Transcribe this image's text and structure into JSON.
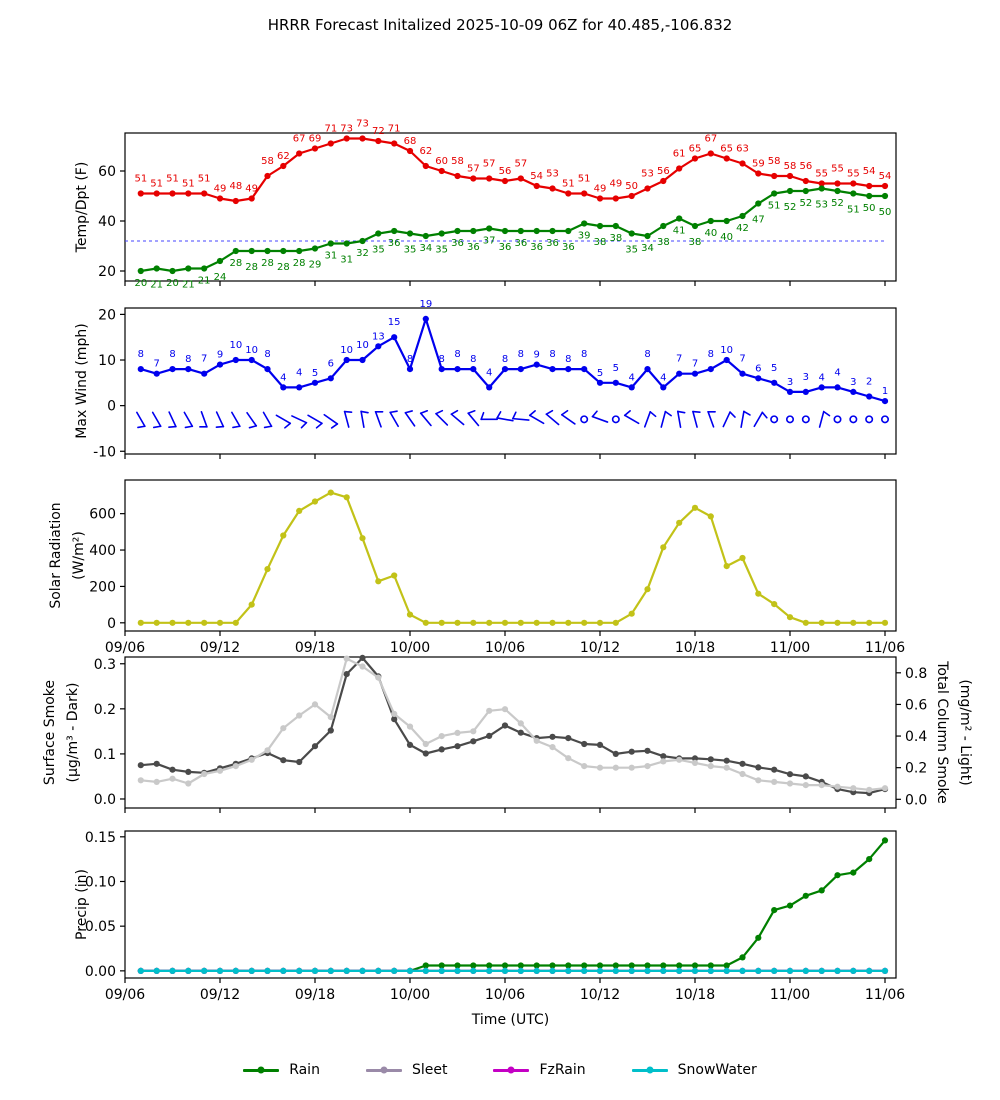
{
  "title": "HRRR Forecast Initalized 2025-10-09 06Z for 40.485,-106.832",
  "x_axis": {
    "label": "Time (UTC)",
    "tick_labels": [
      "09/06",
      "09/12",
      "09/18",
      "10/00",
      "10/06",
      "10/12",
      "10/18",
      "11/00",
      "11/06"
    ],
    "n_points": 48,
    "note": "hourly forecast points beginning one hour after 09/06"
  },
  "colors": {
    "temperature": "#e60000",
    "dewpoint": "#008000",
    "freezing_line": "#4444ff",
    "wind": "#0000ee",
    "solar": "#c2c218",
    "smoke_dark": "#4a4a4a",
    "smoke_light": "#c9c9c9",
    "rain": "#008000",
    "sleet": "#9a8aa8",
    "fzrain": "#c400c4",
    "snowwater": "#00bfca",
    "axis": "#000000"
  },
  "chart_data": [
    {
      "id": "temp",
      "type": "line",
      "ylabel": [
        "Temp/Dpt (F)"
      ],
      "ylim": [
        16.0,
        75.2
      ],
      "yticks": [
        [
          20,
          "20"
        ],
        [
          40,
          "40"
        ],
        [
          60,
          "60"
        ]
      ],
      "grid": false,
      "freezing_line_value": 32,
      "series": [
        {
          "name": "Temperature (F)",
          "color_key": "temperature",
          "point_labels": true,
          "values": [
            51,
            51,
            51,
            51,
            51,
            49,
            48,
            49,
            58,
            62,
            67,
            69,
            71,
            73,
            73,
            72,
            71,
            68,
            62,
            60,
            58,
            57,
            57,
            56,
            57,
            54,
            53,
            51,
            51,
            49,
            49,
            50,
            53,
            56,
            61,
            65,
            67,
            65,
            63,
            59,
            58,
            58,
            56,
            55,
            55,
            55,
            54,
            54
          ],
          "label_side": "above"
        },
        {
          "name": "Dewpoint (F)",
          "color_key": "dewpoint",
          "point_labels": true,
          "values": [
            20,
            21,
            20,
            21,
            21,
            24,
            28,
            28,
            28,
            28,
            28,
            29,
            31,
            31,
            32,
            35,
            36,
            35,
            34,
            35,
            36,
            36,
            37,
            36,
            36,
            36,
            36,
            36,
            39,
            38,
            38,
            35,
            34,
            38,
            41,
            38,
            40,
            40,
            42,
            47,
            51,
            52,
            52,
            53,
            52,
            51,
            50,
            50
          ],
          "label_side": "below"
        }
      ]
    },
    {
      "id": "wind",
      "type": "line",
      "ylabel": [
        "Max Wind (mph)"
      ],
      "ylim": [
        -10.6,
        21.4
      ],
      "yticks": [
        [
          -10,
          "-10"
        ],
        [
          0,
          "0"
        ],
        [
          10,
          "10"
        ],
        [
          20,
          "20"
        ]
      ],
      "grid": false,
      "series": [
        {
          "name": "Max Wind (mph)",
          "color_key": "wind",
          "point_labels": true,
          "values": [
            8,
            7,
            8,
            8,
            7,
            9,
            10,
            10,
            8,
            4,
            4,
            5,
            6,
            10,
            10,
            13,
            15,
            8,
            19,
            8,
            8,
            8,
            4,
            8,
            8,
            9,
            8,
            8,
            8,
            5,
            5,
            4,
            8,
            4,
            7,
            7,
            8,
            10,
            7,
            6,
            5,
            3,
            3,
            4,
            4,
            3,
            2,
            1
          ],
          "label_side": "above"
        }
      ],
      "barbs_y_value": -3,
      "barb_angles_deg": [
        150,
        150,
        155,
        150,
        160,
        155,
        150,
        145,
        150,
        120,
        115,
        120,
        125,
        345,
        350,
        340,
        330,
        325,
        320,
        315,
        310,
        320,
        270,
        280,
        275,
        300,
        310,
        305,
        null,
        290,
        null,
        300,
        20,
        15,
        350,
        345,
        340,
        25,
        10,
        30,
        null,
        null,
        null,
        15,
        null,
        null,
        null,
        null
      ],
      "barb_note": "null = calm circle"
    },
    {
      "id": "solar",
      "type": "line",
      "ylabel": [
        "Solar Radiation",
        "(W/m²)"
      ],
      "ylim": [
        -45,
        785
      ],
      "yticks": [
        [
          0,
          "0"
        ],
        [
          200,
          "200"
        ],
        [
          400,
          "400"
        ],
        [
          600,
          "600"
        ]
      ],
      "x_tick_labels_shown": true,
      "grid": false,
      "series": [
        {
          "name": "Solar Radiation (W/m2)",
          "color_key": "solar",
          "point_labels": false,
          "values": [
            0,
            0,
            0,
            0,
            0,
            0,
            0,
            100,
            295,
            480,
            615,
            667,
            716,
            690,
            465,
            228,
            260,
            45,
            0,
            0,
            0,
            0,
            0,
            0,
            0,
            0,
            0,
            0,
            0,
            0,
            0,
            50,
            185,
            415,
            550,
            632,
            585,
            312,
            356,
            160,
            103,
            31,
            0,
            0,
            0,
            0,
            0,
            0
          ]
        }
      ]
    },
    {
      "id": "smoke",
      "type": "line",
      "ylabel": [
        "Surface Smoke",
        "(μg/m³ - Dark)"
      ],
      "ylabel_right": [
        "Total Column Smoke",
        "(mg/m² - Light)"
      ],
      "ylim": [
        -0.02,
        0.315
      ],
      "yticks": [
        [
          0,
          "0.0"
        ],
        [
          0.1,
          "0.1"
        ],
        [
          0.2,
          "0.2"
        ],
        [
          0.3,
          "0.3"
        ]
      ],
      "ylim_right": [
        -0.055,
        0.9
      ],
      "yticks_right": [
        [
          0,
          "0.0"
        ],
        [
          0.2,
          "0.2"
        ],
        [
          0.4,
          "0.4"
        ],
        [
          0.6,
          "0.6"
        ],
        [
          0.8,
          "0.8"
        ]
      ],
      "grid": false,
      "series": [
        {
          "name": "Surface Smoke (ug/m3)",
          "color_key": "smoke_dark",
          "point_labels": false,
          "values": [
            0.075,
            0.078,
            0.065,
            0.06,
            0.058,
            0.068,
            0.078,
            0.09,
            0.102,
            0.086,
            0.082,
            0.117,
            0.152,
            0.277,
            0.313,
            0.272,
            0.177,
            0.12,
            0.101,
            0.11,
            0.117,
            0.128,
            0.14,
            0.163,
            0.147,
            0.135,
            0.138,
            0.135,
            0.122,
            0.12,
            0.1,
            0.105,
            0.107,
            0.095,
            0.09,
            0.09,
            0.088,
            0.085,
            0.078,
            0.07,
            0.065,
            0.055,
            0.05,
            0.038,
            0.022,
            0.015,
            0.013,
            0.022
          ]
        },
        {
          "name": "Total Column Smoke (mg/m2)",
          "color_key": "smoke_light",
          "axis": "right",
          "point_labels": false,
          "values": [
            0.12,
            0.11,
            0.13,
            0.1,
            0.16,
            0.18,
            0.21,
            0.25,
            0.31,
            0.45,
            0.53,
            0.6,
            0.52,
            0.89,
            0.84,
            0.77,
            0.54,
            0.46,
            0.35,
            0.4,
            0.42,
            0.43,
            0.56,
            0.57,
            0.48,
            0.37,
            0.33,
            0.26,
            0.21,
            0.2,
            0.2,
            0.2,
            0.21,
            0.24,
            0.25,
            0.23,
            0.21,
            0.2,
            0.16,
            0.12,
            0.11,
            0.1,
            0.09,
            0.09,
            0.08,
            0.07,
            0.06,
            0.07
          ]
        }
      ]
    },
    {
      "id": "precip",
      "type": "line",
      "ylabel": [
        "Precip (in)"
      ],
      "ylim": [
        -0.008,
        0.1565
      ],
      "yticks": [
        [
          0,
          "0.00"
        ],
        [
          0.05,
          "0.05"
        ],
        [
          0.1,
          "0.10"
        ],
        [
          0.15,
          "0.15"
        ]
      ],
      "x_tick_labels_shown": true,
      "xlabel": "Time (UTC)",
      "grid": false,
      "series": [
        {
          "name": "Rain",
          "color_key": "rain",
          "point_labels": false,
          "values": [
            0,
            0,
            0,
            0,
            0,
            0,
            0,
            0,
            0,
            0,
            0,
            0,
            0,
            0,
            0,
            0,
            0,
            0,
            0.006,
            0.006,
            0.006,
            0.006,
            0.006,
            0.006,
            0.006,
            0.006,
            0.006,
            0.006,
            0.006,
            0.006,
            0.006,
            0.006,
            0.006,
            0.006,
            0.006,
            0.006,
            0.006,
            0.006,
            0.015,
            0.037,
            0.068,
            0.073,
            0.084,
            0.09,
            0.107,
            0.11,
            0.125,
            0.146
          ]
        },
        {
          "name": "Sleet",
          "color_key": "sleet",
          "point_labels": false,
          "values": [
            0,
            0,
            0,
            0,
            0,
            0,
            0,
            0,
            0,
            0,
            0,
            0,
            0,
            0,
            0,
            0,
            0,
            0,
            0,
            0,
            0,
            0,
            0,
            0,
            0,
            0,
            0,
            0,
            0,
            0,
            0,
            0,
            0,
            0,
            0,
            0,
            0,
            0,
            0,
            0,
            0,
            0,
            0,
            0,
            0,
            0,
            0,
            0
          ]
        },
        {
          "name": "FzRain",
          "color_key": "fzrain",
          "point_labels": false,
          "values": [
            0,
            0,
            0,
            0,
            0,
            0,
            0,
            0,
            0,
            0,
            0,
            0,
            0,
            0,
            0,
            0,
            0,
            0,
            0,
            0,
            0,
            0,
            0,
            0,
            0,
            0,
            0,
            0,
            0,
            0,
            0,
            0,
            0,
            0,
            0,
            0,
            0,
            0,
            0,
            0,
            0,
            0,
            0,
            0,
            0,
            0,
            0,
            0
          ]
        },
        {
          "name": "SnowWater",
          "color_key": "snowwater",
          "point_labels": false,
          "values": [
            0,
            0,
            0,
            0,
            0,
            0,
            0,
            0,
            0,
            0,
            0,
            0,
            0,
            0,
            0,
            0,
            0,
            0,
            0,
            0,
            0,
            0,
            0,
            0,
            0,
            0,
            0,
            0,
            0,
            0,
            0,
            0,
            0,
            0,
            0,
            0,
            0,
            0,
            0,
            0,
            0,
            0,
            0,
            0,
            0,
            0,
            0,
            0
          ]
        }
      ]
    }
  ],
  "legend": {
    "items": [
      {
        "label": "Rain",
        "color_key": "rain"
      },
      {
        "label": "Sleet",
        "color_key": "sleet"
      },
      {
        "label": "FzRain",
        "color_key": "fzrain"
      },
      {
        "label": "SnowWater",
        "color_key": "snowwater"
      }
    ]
  }
}
